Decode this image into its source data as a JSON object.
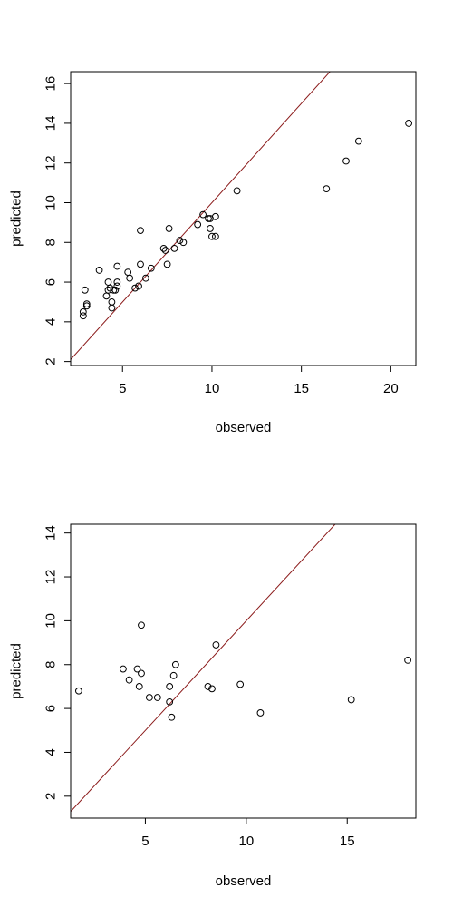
{
  "chart_data": [
    {
      "type": "scatter",
      "title": "",
      "xlabel": "observed",
      "ylabel": "predicted",
      "xlim": [
        2.1,
        21.4
      ],
      "ylim": [
        1.8,
        16.6
      ],
      "xticks": [
        5,
        10,
        15,
        20
      ],
      "yticks": [
        2,
        4,
        6,
        8,
        10,
        12,
        14,
        16
      ],
      "grid": false,
      "reference_line": {
        "type": "y=x",
        "color": "#8B1A1A"
      },
      "point_color": "#000000",
      "points": [
        {
          "x": 2.8,
          "y": 4.3
        },
        {
          "x": 2.8,
          "y": 4.5
        },
        {
          "x": 2.9,
          "y": 5.6
        },
        {
          "x": 3.0,
          "y": 4.8
        },
        {
          "x": 3.0,
          "y": 4.9
        },
        {
          "x": 3.7,
          "y": 6.6
        },
        {
          "x": 4.1,
          "y": 5.3
        },
        {
          "x": 4.2,
          "y": 5.6
        },
        {
          "x": 4.2,
          "y": 6.0
        },
        {
          "x": 4.3,
          "y": 5.7
        },
        {
          "x": 4.4,
          "y": 4.7
        },
        {
          "x": 4.4,
          "y": 5.0
        },
        {
          "x": 4.5,
          "y": 5.6
        },
        {
          "x": 4.6,
          "y": 5.6
        },
        {
          "x": 4.7,
          "y": 5.8
        },
        {
          "x": 4.7,
          "y": 6.0
        },
        {
          "x": 4.7,
          "y": 6.8
        },
        {
          "x": 5.3,
          "y": 6.5
        },
        {
          "x": 5.4,
          "y": 6.2
        },
        {
          "x": 5.7,
          "y": 5.7
        },
        {
          "x": 5.9,
          "y": 5.8
        },
        {
          "x": 6.0,
          "y": 6.9
        },
        {
          "x": 6.0,
          "y": 8.6
        },
        {
          "x": 6.3,
          "y": 6.2
        },
        {
          "x": 6.6,
          "y": 6.7
        },
        {
          "x": 7.3,
          "y": 7.7
        },
        {
          "x": 7.4,
          "y": 7.6
        },
        {
          "x": 7.5,
          "y": 6.9
        },
        {
          "x": 7.6,
          "y": 8.7
        },
        {
          "x": 7.9,
          "y": 7.7
        },
        {
          "x": 8.2,
          "y": 8.1
        },
        {
          "x": 8.4,
          "y": 8.0
        },
        {
          "x": 9.2,
          "y": 8.9
        },
        {
          "x": 9.5,
          "y": 9.4
        },
        {
          "x": 9.8,
          "y": 9.2
        },
        {
          "x": 9.9,
          "y": 9.2
        },
        {
          "x": 9.9,
          "y": 8.7
        },
        {
          "x": 10.0,
          "y": 8.3
        },
        {
          "x": 10.2,
          "y": 9.3
        },
        {
          "x": 10.2,
          "y": 8.3
        },
        {
          "x": 11.4,
          "y": 10.6
        },
        {
          "x": 16.4,
          "y": 10.7
        },
        {
          "x": 17.5,
          "y": 12.1
        },
        {
          "x": 18.2,
          "y": 13.1
        },
        {
          "x": 21.0,
          "y": 14.0
        }
      ]
    },
    {
      "type": "scatter",
      "title": "",
      "xlabel": "observed",
      "ylabel": "predicted",
      "xlim": [
        1.3,
        18.4
      ],
      "ylim": [
        1.0,
        14.4
      ],
      "xticks": [
        5,
        10,
        15
      ],
      "yticks": [
        2,
        4,
        6,
        8,
        10,
        12,
        14
      ],
      "grid": false,
      "reference_line": {
        "type": "y=x",
        "color": "#8B1A1A"
      },
      "point_color": "#000000",
      "points": [
        {
          "x": 1.7,
          "y": 6.8
        },
        {
          "x": 3.9,
          "y": 7.8
        },
        {
          "x": 4.2,
          "y": 7.3
        },
        {
          "x": 4.6,
          "y": 7.8
        },
        {
          "x": 4.7,
          "y": 7.0
        },
        {
          "x": 4.8,
          "y": 9.8
        },
        {
          "x": 4.8,
          "y": 7.6
        },
        {
          "x": 5.2,
          "y": 6.5
        },
        {
          "x": 5.6,
          "y": 6.5
        },
        {
          "x": 6.2,
          "y": 6.3
        },
        {
          "x": 6.2,
          "y": 7.0
        },
        {
          "x": 6.3,
          "y": 5.6
        },
        {
          "x": 6.4,
          "y": 7.5
        },
        {
          "x": 6.5,
          "y": 8.0
        },
        {
          "x": 8.1,
          "y": 7.0
        },
        {
          "x": 8.3,
          "y": 6.9
        },
        {
          "x": 8.5,
          "y": 8.9
        },
        {
          "x": 9.7,
          "y": 7.1
        },
        {
          "x": 10.7,
          "y": 5.8
        },
        {
          "x": 15.2,
          "y": 6.4
        },
        {
          "x": 18.0,
          "y": 8.2
        }
      ]
    }
  ]
}
